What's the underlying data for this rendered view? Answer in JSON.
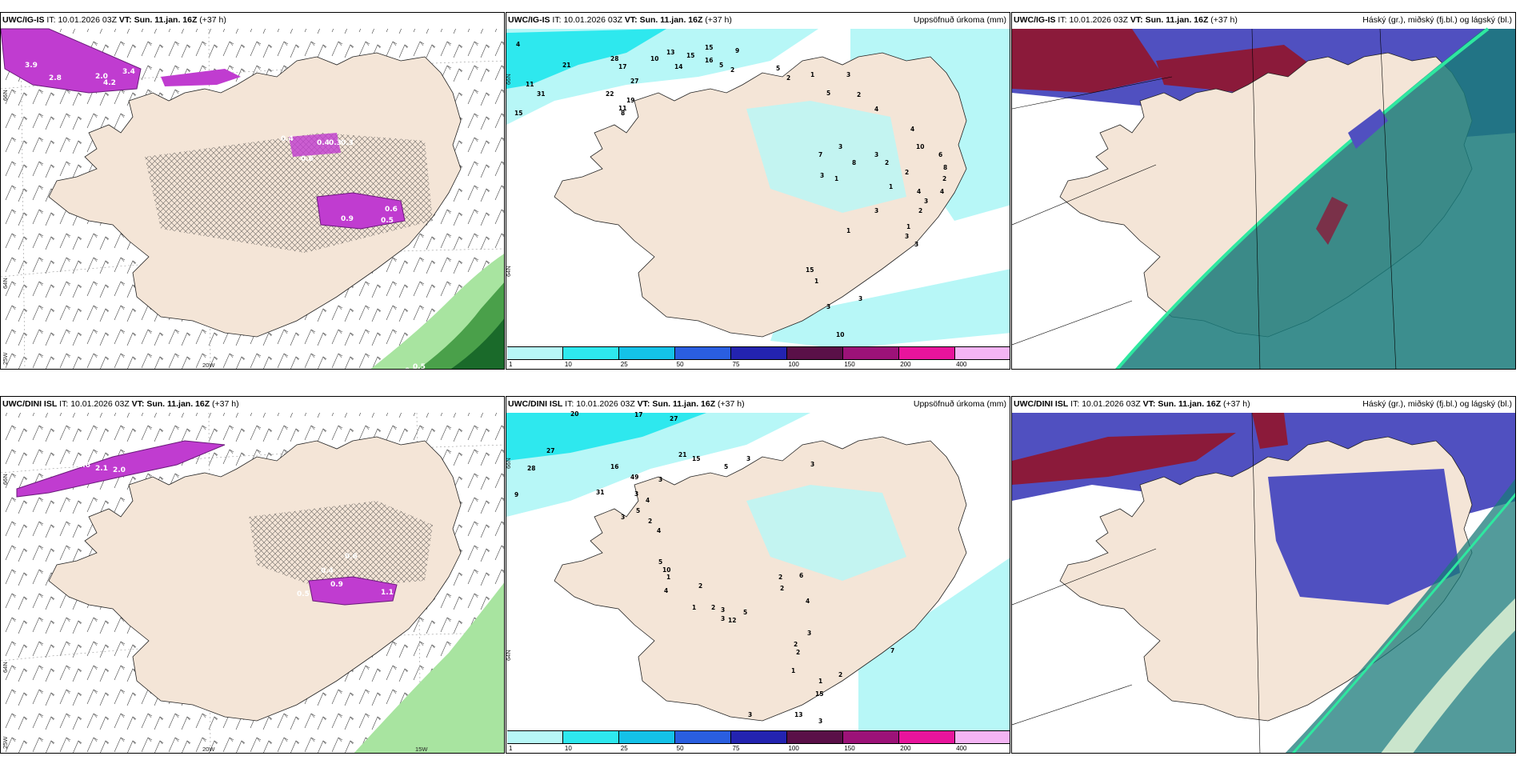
{
  "colors": {
    "land": "#f4e5d7",
    "coast": "#222222",
    "precip_scale": [
      "#b7f7f7",
      "#2ee8ee",
      "#14c2e8",
      "#2a5ee0",
      "#2323b0",
      "#5a1048",
      "#9c1278",
      "#e8149c",
      "#f4b4f4"
    ],
    "magenta": "#c03cd0",
    "green_dark": "#1a6a2a",
    "green_mid": "#4aa04a",
    "green_light": "#a8e4a0",
    "cloud_high": "#8b1a3a",
    "cloud_mid": "#5050c0",
    "cloud_low": "#1a7a7a"
  },
  "panels": [
    {
      "id": "ig-wind",
      "model": "UWC/IG-IS",
      "it_label": "IT:",
      "it_value": "10.01.2026 03Z",
      "vt_label": "VT:",
      "vt_value": "Sun. 11.jan. 16Z",
      "lead": "(+37 h)",
      "right_title": "",
      "axis": {
        "lat66": "66N",
        "lat64": "64N",
        "lon25": "25W",
        "lon20": "20W"
      },
      "labels": [
        "3.9",
        "2.8",
        "2.0",
        "4.2",
        "3.4",
        "0.4",
        "0.3",
        "0.6",
        "0.4",
        "0.3",
        "0.6",
        "0.9",
        "0.5",
        "0.5",
        "0.5",
        "0.6"
      ]
    },
    {
      "id": "ig-precip",
      "model": "UWC/IG-IS",
      "it_label": "IT:",
      "it_value": "10.01.2026 03Z",
      "vt_label": "VT:",
      "vt_value": "Sun. 11.jan. 16Z",
      "lead": "(+37 h)",
      "right_title": "Uppsöfnuð úrkoma (mm)",
      "axis": {
        "lat66": "66N",
        "lat64": "64N"
      },
      "labels": [
        "4",
        "21",
        "11",
        "31",
        "15",
        "13",
        "15",
        "15",
        "16",
        "10",
        "14",
        "9",
        "5",
        "2",
        "28",
        "17",
        "27",
        "22",
        "11",
        "19",
        "8",
        "5",
        "2",
        "1",
        "3",
        "5",
        "2",
        "4",
        "4",
        "6",
        "8",
        "10",
        "3",
        "7",
        "8",
        "3",
        "2",
        "1",
        "3",
        "1",
        "2",
        "4",
        "3",
        "2",
        "1",
        "3",
        "3",
        "2",
        "4",
        "3",
        "1",
        "1",
        "15",
        "3",
        "3",
        "10"
      ],
      "colorbar": [
        "1",
        "10",
        "25",
        "50",
        "75",
        "100",
        "150",
        "200",
        "400"
      ]
    },
    {
      "id": "ig-clouds",
      "model": "UWC/IG-IS",
      "it_label": "IT:",
      "it_value": "10.01.2026 03Z",
      "vt_label": "VT:",
      "vt_value": "Sun. 11.jan. 16Z",
      "lead": "(+37 h)",
      "right_title": "Háský (gr.), miðský (fj.bl.) og lágský (bl.)"
    },
    {
      "id": "dini-wind",
      "model": "UWC/DINI ISL",
      "it_label": "IT:",
      "it_value": "10.01.2026 03Z",
      "vt_label": "VT:",
      "vt_value": "Sun. 11.jan. 16Z",
      "lead": "(+37 h)",
      "right_title": "",
      "axis": {
        "lat66": "66N",
        "lat64": "64N",
        "lon25": "25W",
        "lon20": "20W",
        "lon15": "15W"
      },
      "labels": [
        "1.8",
        "2.6",
        "2.1",
        "2.0",
        "0.6",
        "0.4",
        "0.9",
        "0.5",
        "1.1"
      ]
    },
    {
      "id": "dini-precip",
      "model": "UWC/DINI ISL",
      "it_label": "IT:",
      "it_value": "10.01.2026 03Z",
      "vt_label": "VT:",
      "vt_value": "Sun. 11.jan. 16Z",
      "lead": "(+37 h)",
      "right_title": "Uppsöfnuð úrkoma (mm)",
      "axis": {
        "lat66": "66N",
        "lat64": "64N"
      },
      "labels": [
        "20",
        "27",
        "17",
        "27",
        "28",
        "21",
        "15",
        "5",
        "3",
        "9",
        "16",
        "31",
        "49",
        "3",
        "3",
        "3",
        "4",
        "3",
        "5",
        "2",
        "4",
        "5",
        "10",
        "1",
        "4",
        "1",
        "2",
        "2",
        "3",
        "3",
        "12",
        "5",
        "2",
        "6",
        "2",
        "4",
        "3",
        "2",
        "2",
        "1",
        "1",
        "15",
        "3",
        "7",
        "2",
        "13",
        "3"
      ],
      "colorbar": [
        "1",
        "10",
        "25",
        "50",
        "75",
        "100",
        "150",
        "200",
        "400"
      ]
    },
    {
      "id": "dini-clouds",
      "model": "UWC/DINI ISL",
      "it_label": "IT:",
      "it_value": "10.01.2026 03Z",
      "vt_label": "VT:",
      "vt_value": "Sun. 11.jan. 16Z",
      "lead": "(+37 h)",
      "right_title": "Háský (gr.), miðský (fj.bl.) og lágský (bl.)"
    }
  ]
}
